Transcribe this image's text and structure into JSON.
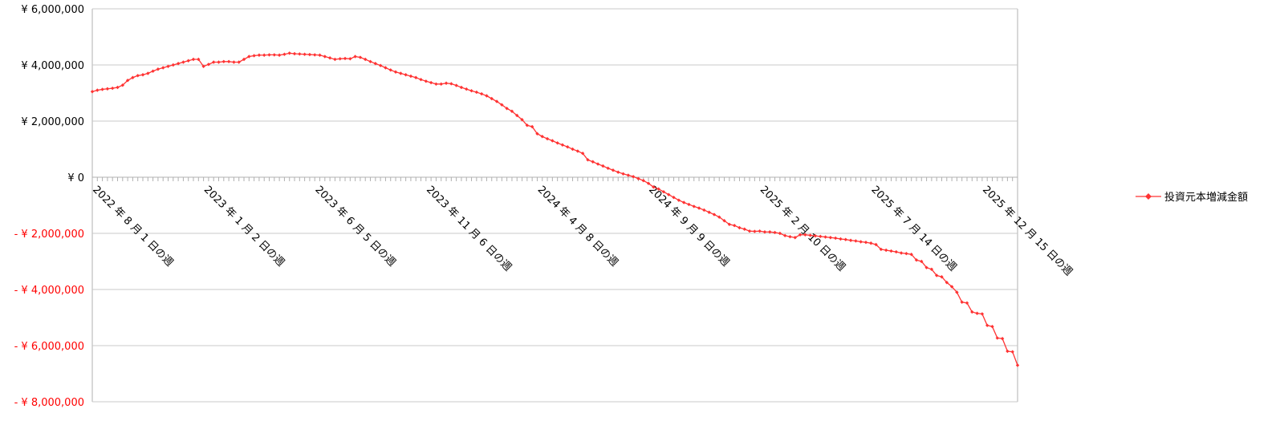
{
  "chart_data": {
    "type": "line",
    "categories": [
      "2022 年 8 月 1 日の週",
      null,
      null,
      null,
      null,
      null,
      null,
      null,
      null,
      null,
      null,
      null,
      null,
      null,
      null,
      null,
      null,
      null,
      null,
      null,
      null,
      null,
      "2023 年 1 月 2 日の週",
      null,
      null,
      null,
      null,
      null,
      null,
      null,
      null,
      null,
      null,
      null,
      null,
      null,
      null,
      null,
      null,
      null,
      null,
      null,
      null,
      null,
      "2023 年 6 月 5 日の週",
      null,
      null,
      null,
      null,
      null,
      null,
      null,
      null,
      null,
      null,
      null,
      null,
      null,
      null,
      null,
      null,
      null,
      null,
      null,
      null,
      null,
      "2023 年 11 月 6 日の週",
      null,
      null,
      null,
      null,
      null,
      null,
      null,
      null,
      null,
      null,
      null,
      null,
      null,
      null,
      null,
      null,
      null,
      null,
      null,
      null,
      null,
      "2024 年 4 月 8 日の週",
      null,
      null,
      null,
      null,
      null,
      null,
      null,
      null,
      null,
      null,
      null,
      null,
      null,
      null,
      null,
      null,
      null,
      null,
      null,
      null,
      null,
      "2024 年 9 月 9 日の週",
      null,
      null,
      null,
      null,
      null,
      null,
      null,
      null,
      null,
      null,
      null,
      null,
      null,
      null,
      null,
      null,
      null,
      null,
      null,
      null,
      null,
      "2025 年 2 月 10 日の週",
      null,
      null,
      null,
      null,
      null,
      null,
      null,
      null,
      null,
      null,
      null,
      null,
      null,
      null,
      null,
      null,
      null,
      null,
      null,
      null,
      null,
      "2025 年 7 月 14 日の週",
      null,
      null,
      null,
      null,
      null,
      null,
      null,
      null,
      null,
      null,
      null,
      null,
      null,
      null,
      null,
      null,
      null,
      null,
      null,
      null,
      null,
      "2025 年 12 月 15 日の週",
      null,
      null,
      null,
      null,
      null,
      null,
      null
    ],
    "series": [
      {
        "name": "投資元本増減金額",
        "color": "#ff3333",
        "values": [
          3050000,
          3100000,
          3130000,
          3150000,
          3170000,
          3200000,
          3280000,
          3450000,
          3550000,
          3620000,
          3650000,
          3700000,
          3780000,
          3850000,
          3900000,
          3950000,
          4000000,
          4050000,
          4100000,
          4150000,
          4200000,
          4200000,
          3950000,
          4020000,
          4100000,
          4100000,
          4120000,
          4120000,
          4100000,
          4100000,
          4200000,
          4300000,
          4330000,
          4350000,
          4350000,
          4360000,
          4360000,
          4350000,
          4380000,
          4420000,
          4400000,
          4390000,
          4380000,
          4370000,
          4360000,
          4350000,
          4300000,
          4250000,
          4200000,
          4220000,
          4230000,
          4220000,
          4300000,
          4270000,
          4200000,
          4120000,
          4050000,
          3980000,
          3900000,
          3820000,
          3750000,
          3700000,
          3650000,
          3600000,
          3550000,
          3480000,
          3420000,
          3370000,
          3320000,
          3320000,
          3350000,
          3330000,
          3270000,
          3200000,
          3140000,
          3080000,
          3030000,
          2970000,
          2900000,
          2800000,
          2700000,
          2580000,
          2450000,
          2350000,
          2200000,
          2050000,
          1850000,
          1800000,
          1550000,
          1450000,
          1370000,
          1300000,
          1220000,
          1150000,
          1080000,
          1000000,
          930000,
          850000,
          620000,
          550000,
          470000,
          400000,
          320000,
          250000,
          180000,
          120000,
          70000,
          20000,
          -50000,
          -120000,
          -220000,
          -350000,
          -420000,
          -520000,
          -620000,
          -720000,
          -820000,
          -900000,
          -970000,
          -1040000,
          -1100000,
          -1170000,
          -1250000,
          -1330000,
          -1420000,
          -1550000,
          -1680000,
          -1720000,
          -1800000,
          -1850000,
          -1920000,
          -1930000,
          -1920000,
          -1950000,
          -1950000,
          -1970000,
          -2000000,
          -2080000,
          -2120000,
          -2150000,
          -2050000,
          -2050000,
          -2070000,
          -2090000,
          -2110000,
          -2130000,
          -2150000,
          -2170000,
          -2200000,
          -2220000,
          -2250000,
          -2270000,
          -2300000,
          -2320000,
          -2350000,
          -2400000,
          -2570000,
          -2600000,
          -2630000,
          -2660000,
          -2700000,
          -2720000,
          -2750000,
          -2950000,
          -3000000,
          -3220000,
          -3280000,
          -3500000,
          -3550000,
          -3750000,
          -3900000,
          -4100000,
          -4450000,
          -4480000,
          -4800000,
          -4850000,
          -4870000,
          -5280000,
          -5320000,
          -5730000,
          -5750000,
          -6200000,
          -6220000,
          -6700000
        ]
      }
    ],
    "ylim": [
      -8000000,
      6000000
    ],
    "yticks": [
      {
        "value": -8000000,
        "label": "- ¥ 8,000,000"
      },
      {
        "value": -6000000,
        "label": "- ¥ 6,000,000"
      },
      {
        "value": -4000000,
        "label": "- ¥ 4,000,000"
      },
      {
        "value": -2000000,
        "label": "- ¥ 2,000,000"
      },
      {
        "value": 0,
        "label": "¥ 0"
      },
      {
        "value": 2000000,
        "label": "¥ 2,000,000"
      },
      {
        "value": 4000000,
        "label": "¥ 4,000,000"
      },
      {
        "value": 6000000,
        "label": "¥ 6,000,000"
      }
    ],
    "grid": true,
    "legend": "right"
  }
}
